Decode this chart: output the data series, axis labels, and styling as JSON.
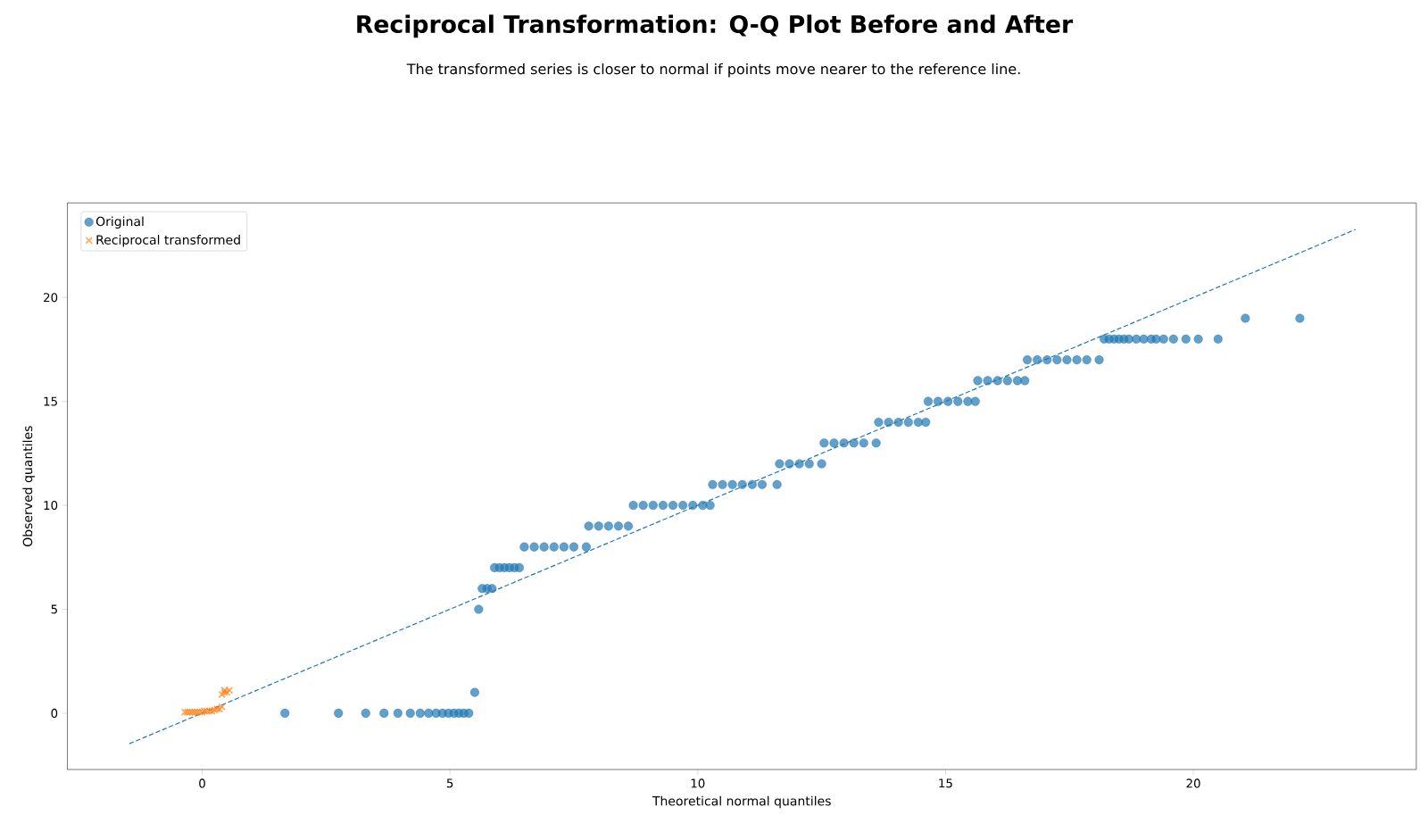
{
  "chart_data": {
    "type": "scatter",
    "title": "Reciprocal Transformation: Q-Q Plot Before and After",
    "subtitle": "The transformed series is closer to normal if points move nearer to the reference line.",
    "xlabel": "Theoretical normal quantiles",
    "ylabel": "Observed quantiles",
    "xlim": [
      -2.72,
      24.5
    ],
    "ylim": [
      -2.71,
      24.55
    ],
    "xticks": [
      0,
      5,
      10,
      15,
      20
    ],
    "yticks": [
      0,
      5,
      10,
      15,
      20
    ],
    "grid": false,
    "legend": "top left",
    "series": [
      {
        "name": "Original",
        "type": "scatter",
        "marker": "circle",
        "color": "#1f77b4",
        "x": [
          1.67,
          2.75,
          3.3,
          3.67,
          3.95,
          4.2,
          4.4,
          4.57,
          4.72,
          4.85,
          4.97,
          5.08,
          5.18,
          5.28,
          5.38,
          5.5,
          5.58,
          5.65,
          5.75,
          5.85,
          5.9,
          6.0,
          6.1,
          6.2,
          6.3,
          6.4,
          6.5,
          6.7,
          6.9,
          7.1,
          7.3,
          7.5,
          7.75,
          7.8,
          8.0,
          8.2,
          8.4,
          8.6,
          8.7,
          8.9,
          9.1,
          9.3,
          9.5,
          9.7,
          9.9,
          10.1,
          10.25,
          10.3,
          10.5,
          10.7,
          10.9,
          11.1,
          11.3,
          11.6,
          11.65,
          11.85,
          12.05,
          12.25,
          12.5,
          12.55,
          12.75,
          12.95,
          13.15,
          13.35,
          13.6,
          13.65,
          13.85,
          14.05,
          14.25,
          14.45,
          14.6,
          14.65,
          14.85,
          15.05,
          15.25,
          15.45,
          15.6,
          15.65,
          15.85,
          16.05,
          16.25,
          16.45,
          16.6,
          16.65,
          16.85,
          17.05,
          17.25,
          17.45,
          17.65,
          17.85,
          18.1,
          18.2,
          18.3,
          18.4,
          18.5,
          18.6,
          18.7,
          18.85,
          19.0,
          19.15,
          19.25,
          19.4,
          19.6,
          19.85,
          20.1,
          20.5,
          21.05,
          22.15
        ],
        "values": [
          0,
          0,
          0,
          0,
          0,
          0,
          0,
          0,
          0,
          0,
          0,
          0,
          0,
          0,
          0,
          1,
          5,
          6,
          6,
          6,
          7,
          7,
          7,
          7,
          7,
          7,
          8,
          8,
          8,
          8,
          8,
          8,
          8,
          9,
          9,
          9,
          9,
          9,
          10,
          10,
          10,
          10,
          10,
          10,
          10,
          10,
          10,
          11,
          11,
          11,
          11,
          11,
          11,
          11,
          12,
          12,
          12,
          12,
          12,
          13,
          13,
          13,
          13,
          13,
          13,
          14,
          14,
          14,
          14,
          14,
          14,
          15,
          15,
          15,
          15,
          15,
          15,
          16,
          16,
          16,
          16,
          16,
          16,
          17,
          17,
          17,
          17,
          17,
          17,
          17,
          17,
          18,
          18,
          18,
          18,
          18,
          18,
          18,
          18,
          18,
          18,
          18,
          18,
          18,
          18,
          18,
          19,
          19
        ]
      },
      {
        "name": "Reciprocal transformed",
        "type": "scatter",
        "marker": "cross",
        "color": "#ff7f0e",
        "x": [
          -0.35,
          -0.3,
          -0.25,
          -0.2,
          -0.15,
          -0.1,
          -0.05,
          0.0,
          0.05,
          0.1,
          0.15,
          0.2,
          0.25,
          0.3,
          0.35,
          0.4,
          0.4,
          0.45,
          0.45,
          0.5,
          0.55
        ],
        "values": [
          0.05,
          0.05,
          0.05,
          0.05,
          0.05,
          0.05,
          0.05,
          0.05,
          0.1,
          0.1,
          0.1,
          0.1,
          0.15,
          0.2,
          0.2,
          0.3,
          0.9,
          1.0,
          1.1,
          1.0,
          1.1
        ]
      },
      {
        "type": "line",
        "marker": "none",
        "line_style": "dashed",
        "color": "#1f77b4",
        "x": [
          -1.47,
          23.27
        ],
        "values": [
          -1.47,
          23.27
        ]
      }
    ]
  }
}
